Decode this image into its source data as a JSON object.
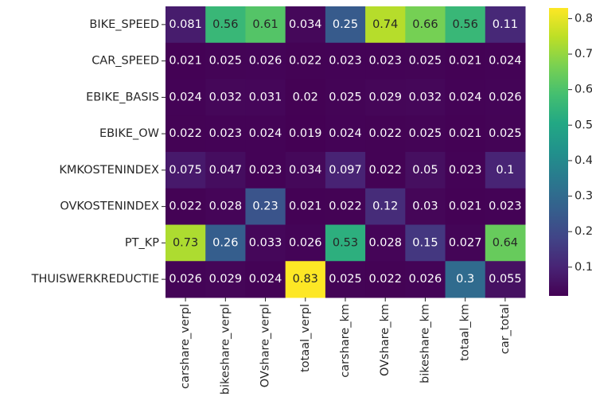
{
  "chart_data": {
    "type": "heatmap",
    "title": "",
    "xlabel": "",
    "ylabel": "",
    "rows": [
      "BIKE_SPEED",
      "CAR_SPEED",
      "EBIKE_BASIS",
      "EBIKE_OW",
      "KMKOSTENINDEX",
      "OVKOSTENINDEX",
      "PT_KP",
      "THUISWERKREDUCTIE"
    ],
    "columns": [
      "carshare_verpl",
      "bikeshare_verpl",
      "OVshare_verpl",
      "totaal_verpl",
      "carshare_km",
      "OVshare_km",
      "bikeshare_km",
      "totaal_km",
      "car_total"
    ],
    "values": [
      [
        0.081,
        0.56,
        0.61,
        0.034,
        0.25,
        0.74,
        0.66,
        0.56,
        0.11
      ],
      [
        0.021,
        0.025,
        0.026,
        0.022,
        0.023,
        0.023,
        0.025,
        0.021,
        0.024
      ],
      [
        0.024,
        0.032,
        0.031,
        0.02,
        0.025,
        0.029,
        0.032,
        0.024,
        0.026
      ],
      [
        0.022,
        0.023,
        0.024,
        0.019,
        0.024,
        0.022,
        0.025,
        0.021,
        0.025
      ],
      [
        0.075,
        0.047,
        0.023,
        0.034,
        0.097,
        0.022,
        0.05,
        0.023,
        0.1
      ],
      [
        0.022,
        0.028,
        0.23,
        0.021,
        0.022,
        0.12,
        0.03,
        0.021,
        0.023
      ],
      [
        0.73,
        0.26,
        0.033,
        0.026,
        0.53,
        0.028,
        0.15,
        0.027,
        0.64
      ],
      [
        0.026,
        0.029,
        0.024,
        0.83,
        0.025,
        0.022,
        0.026,
        0.3,
        0.055
      ]
    ],
    "labels": [
      [
        "0.081",
        "0.56",
        "0.61",
        "0.034",
        "0.25",
        "0.74",
        "0.66",
        "0.56",
        "0.11"
      ],
      [
        "0.021",
        "0.025",
        "0.026",
        "0.022",
        "0.023",
        "0.023",
        "0.025",
        "0.021",
        "0.024"
      ],
      [
        "0.024",
        "0.032",
        "0.031",
        "0.02",
        "0.025",
        "0.029",
        "0.032",
        "0.024",
        "0.026"
      ],
      [
        "0.022",
        "0.023",
        "0.024",
        "0.019",
        "0.024",
        "0.022",
        "0.025",
        "0.021",
        "0.025"
      ],
      [
        "0.075",
        "0.047",
        "0.023",
        "0.034",
        "0.097",
        "0.022",
        "0.05",
        "0.023",
        "0.1"
      ],
      [
        "0.022",
        "0.028",
        "0.23",
        "0.021",
        "0.022",
        "0.12",
        "0.03",
        "0.021",
        "0.023"
      ],
      [
        "0.73",
        "0.26",
        "0.033",
        "0.026",
        "0.53",
        "0.028",
        "0.15",
        "0.027",
        "0.64"
      ],
      [
        "0.026",
        "0.029",
        "0.024",
        "0.83",
        "0.025",
        "0.022",
        "0.026",
        "0.3",
        "0.055"
      ]
    ],
    "colormap": "viridis",
    "vmin": 0.019,
    "vmax": 0.83,
    "colorbar": {
      "ticks": [
        0.1,
        0.2,
        0.3,
        0.4,
        0.5,
        0.6,
        0.7,
        0.8
      ],
      "tick_labels": [
        "0.1",
        "0.2",
        "0.3",
        "0.4",
        "0.5",
        "0.6",
        "0.7",
        "0.8"
      ],
      "placement": "right"
    },
    "grid": false
  }
}
